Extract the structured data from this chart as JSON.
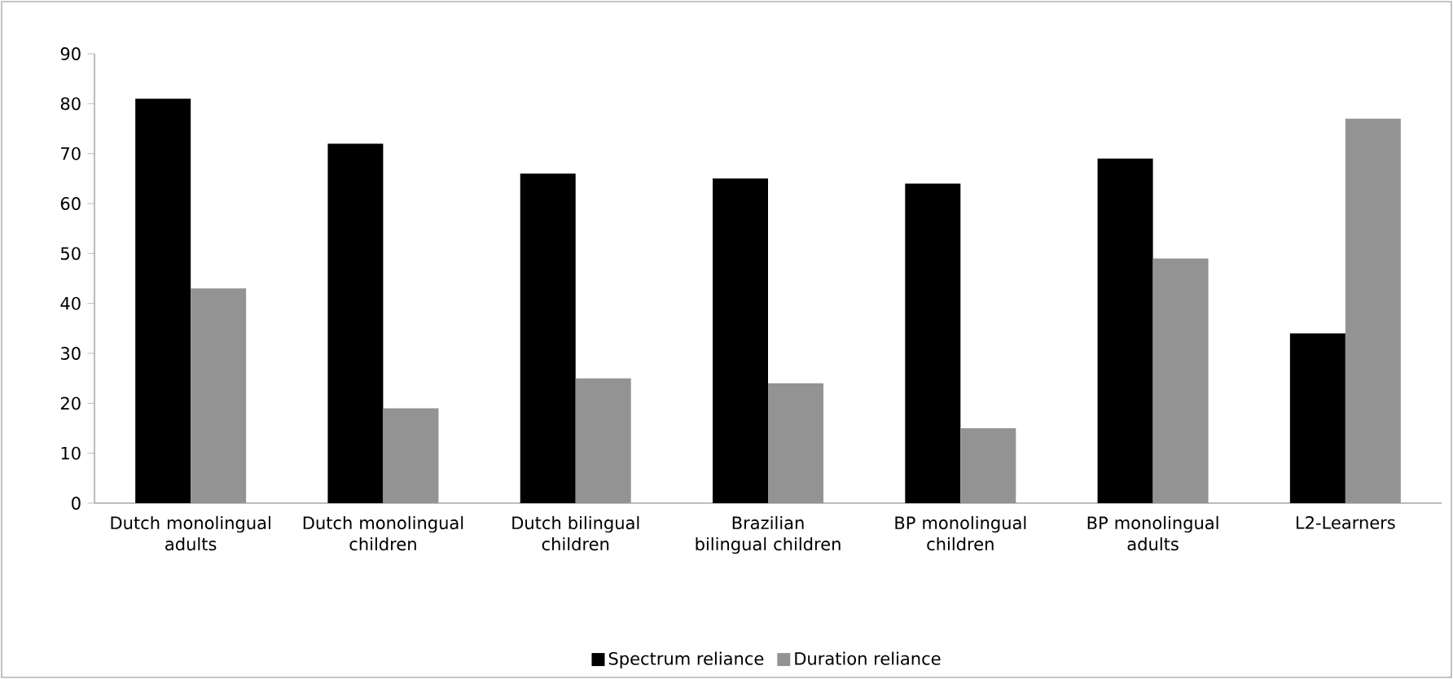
{
  "chart_data": {
    "type": "bar",
    "categories": [
      "Dutch monolingual adults",
      "Dutch monolingual children",
      "Dutch bilingual children",
      "Brazilian bilingual children",
      "BP monolingual children",
      "BP monolingual adults",
      "L2-Learners"
    ],
    "series": [
      {
        "name": "Spectrum reliance",
        "color": "#000000",
        "values": [
          81,
          72,
          66,
          65,
          64,
          69,
          34
        ]
      },
      {
        "name": "Duration reliance",
        "color": "#939393",
        "values": [
          43,
          19,
          25,
          24,
          15,
          49,
          77
        ]
      }
    ],
    "ylim": [
      0,
      90
    ],
    "yticks": [
      0,
      10,
      20,
      30,
      40,
      50,
      60,
      70,
      80,
      90
    ],
    "grid": false,
    "legend": "bottom"
  }
}
